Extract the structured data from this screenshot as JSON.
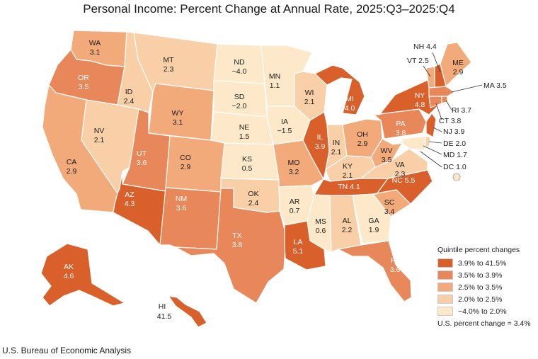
{
  "title": "Personal Income: Percent Change at Annual Rate, 2025:Q3–2025:Q4",
  "source": "U.S. Bureau of Economic Analysis",
  "legend": {
    "title": "Quintile percent changes",
    "items": [
      {
        "label": "3.9% to 41.5%",
        "color": "#d9602a"
      },
      {
        "label": "3.5% to 3.9%",
        "color": "#e8875a"
      },
      {
        "label": "2.5% to 3.5%",
        "color": "#f3aa7b"
      },
      {
        "label": "2.0% to 2.5%",
        "color": "#f8cfa6"
      },
      {
        "label": "−4.0% to 2.0%",
        "color": "#fde9c9"
      }
    ],
    "us_note": "U.S. percent change = 3.4%"
  },
  "states": [
    {
      "abbr": "WA",
      "value": "3.1",
      "quintile": 2
    },
    {
      "abbr": "OR",
      "value": "3.5",
      "quintile": 1
    },
    {
      "abbr": "CA",
      "value": "2.9",
      "quintile": 2
    },
    {
      "abbr": "NV",
      "value": "2.1",
      "quintile": 3
    },
    {
      "abbr": "ID",
      "value": "2.4",
      "quintile": 3
    },
    {
      "abbr": "MT",
      "value": "2.3",
      "quintile": 3
    },
    {
      "abbr": "WY",
      "value": "3.1",
      "quintile": 2
    },
    {
      "abbr": "UT",
      "value": "3.6",
      "quintile": 1
    },
    {
      "abbr": "AZ",
      "value": "4.3",
      "quintile": 0
    },
    {
      "abbr": "CO",
      "value": "2.9",
      "quintile": 2
    },
    {
      "abbr": "NM",
      "value": "3.6",
      "quintile": 1
    },
    {
      "abbr": "ND",
      "value": "−4.0",
      "quintile": 4
    },
    {
      "abbr": "SD",
      "value": "−2.0",
      "quintile": 4
    },
    {
      "abbr": "NE",
      "value": "1.5",
      "quintile": 4
    },
    {
      "abbr": "KS",
      "value": "0.5",
      "quintile": 4
    },
    {
      "abbr": "OK",
      "value": "2.4",
      "quintile": 3
    },
    {
      "abbr": "TX",
      "value": "3.8",
      "quintile": 1
    },
    {
      "abbr": "MN",
      "value": "1.1",
      "quintile": 4
    },
    {
      "abbr": "IA",
      "value": "−1.5",
      "quintile": 4
    },
    {
      "abbr": "MO",
      "value": "3.2",
      "quintile": 2
    },
    {
      "abbr": "AR",
      "value": "0.7",
      "quintile": 4
    },
    {
      "abbr": "LA",
      "value": "5.1",
      "quintile": 0
    },
    {
      "abbr": "WI",
      "value": "2.1",
      "quintile": 3
    },
    {
      "abbr": "IL",
      "value": "3.9",
      "quintile": 0
    },
    {
      "abbr": "MI",
      "value": "4.0",
      "quintile": 0
    },
    {
      "abbr": "IN",
      "value": "2.1",
      "quintile": 3
    },
    {
      "abbr": "OH",
      "value": "2.9",
      "quintile": 2
    },
    {
      "abbr": "KY",
      "value": "2.1",
      "quintile": 3
    },
    {
      "abbr": "TN",
      "value": "4.1",
      "quintile": 0
    },
    {
      "abbr": "MS",
      "value": "0.6",
      "quintile": 4
    },
    {
      "abbr": "AL",
      "value": "2.2",
      "quintile": 3
    },
    {
      "abbr": "GA",
      "value": "1.9",
      "quintile": 4
    },
    {
      "abbr": "FL",
      "value": "3.6",
      "quintile": 1
    },
    {
      "abbr": "SC",
      "value": "3.4",
      "quintile": 2
    },
    {
      "abbr": "NC",
      "value": "5.5",
      "quintile": 0
    },
    {
      "abbr": "VA",
      "value": "2.3",
      "quintile": 3
    },
    {
      "abbr": "WV",
      "value": "3.5",
      "quintile": 2
    },
    {
      "abbr": "PA",
      "value": "3.8",
      "quintile": 1
    },
    {
      "abbr": "NY",
      "value": "4.8",
      "quintile": 0
    },
    {
      "abbr": "VT",
      "value": "2.5",
      "quintile": 2
    },
    {
      "abbr": "NH",
      "value": "4.4",
      "quintile": 0
    },
    {
      "abbr": "ME",
      "value": "2.9",
      "quintile": 2
    },
    {
      "abbr": "MA",
      "value": "3.5",
      "quintile": 1
    },
    {
      "abbr": "RI",
      "value": "3.7",
      "quintile": 1
    },
    {
      "abbr": "CT",
      "value": "3.8",
      "quintile": 1
    },
    {
      "abbr": "NJ",
      "value": "3.9",
      "quintile": 0
    },
    {
      "abbr": "DE",
      "value": "2.0",
      "quintile": 3
    },
    {
      "abbr": "MD",
      "value": "1.7",
      "quintile": 4
    },
    {
      "abbr": "DC",
      "value": "1.0",
      "quintile": 4
    },
    {
      "abbr": "AK",
      "value": "4.6",
      "quintile": 0
    },
    {
      "abbr": "HI",
      "value": "41.5",
      "quintile": 0
    }
  ]
}
